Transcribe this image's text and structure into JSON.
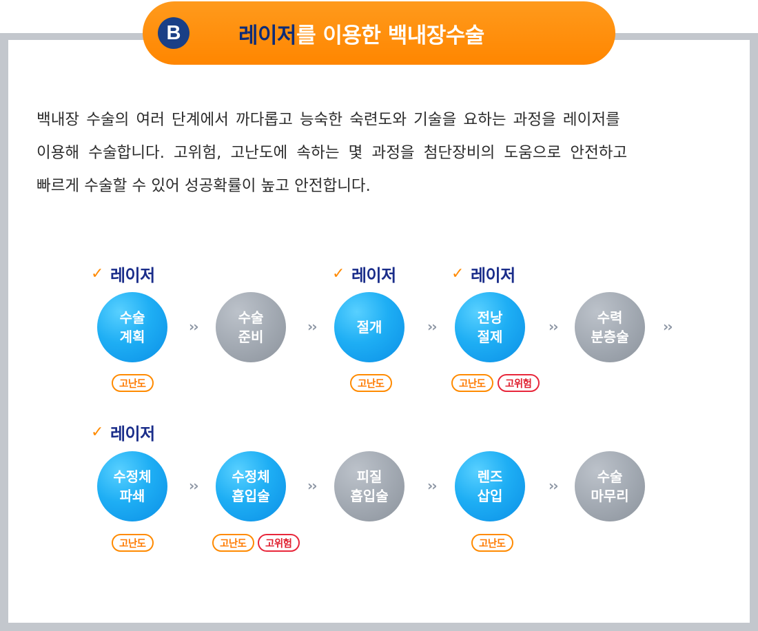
{
  "header": {
    "badge": "B",
    "title_highlight": "레이저",
    "title_rest": "를 이용한 백내장수술"
  },
  "description": [
    "백내장 수술의 여러 단계에서 까다롭고 능숙한 숙련도와 기술을 요하는 과정을 레이저를",
    "이용해 수술합니다. 고위험, 고난도에 속하는 몇 과정을 첨단장비의 도움으로 안전하고",
    "빠르게 수술할 수 있어 성공확률이 높고 안전합니다."
  ],
  "laser_label": "레이저",
  "arrow": "››",
  "tags": {
    "difficult": "고난도",
    "risk": "고위험"
  },
  "row1": [
    {
      "line1": "수술",
      "line2": "계획",
      "color": "blue"
    },
    {
      "line1": "수술",
      "line2": "준비",
      "color": "gray"
    },
    {
      "line1": "절개",
      "line2": "",
      "color": "blue"
    },
    {
      "line1": "전낭",
      "line2": "절제",
      "color": "blue"
    },
    {
      "line1": "수력",
      "line2": "분층술",
      "color": "gray"
    }
  ],
  "row2": [
    {
      "line1": "수정체",
      "line2": "파쇄",
      "color": "blue"
    },
    {
      "line1": "수정체",
      "line2": "흡입술",
      "color": "blue"
    },
    {
      "line1": "피질",
      "line2": "흡입술",
      "color": "gray"
    },
    {
      "line1": "렌즈",
      "line2": "삽입",
      "color": "blue"
    },
    {
      "line1": "수술",
      "line2": "마무리",
      "color": "gray"
    }
  ],
  "colors": {
    "accent_orange": "#ff8600",
    "navy": "#1a3f86",
    "blue": "#1eaef4",
    "gray": "#a3aab3",
    "risk_red": "#e8263a"
  }
}
